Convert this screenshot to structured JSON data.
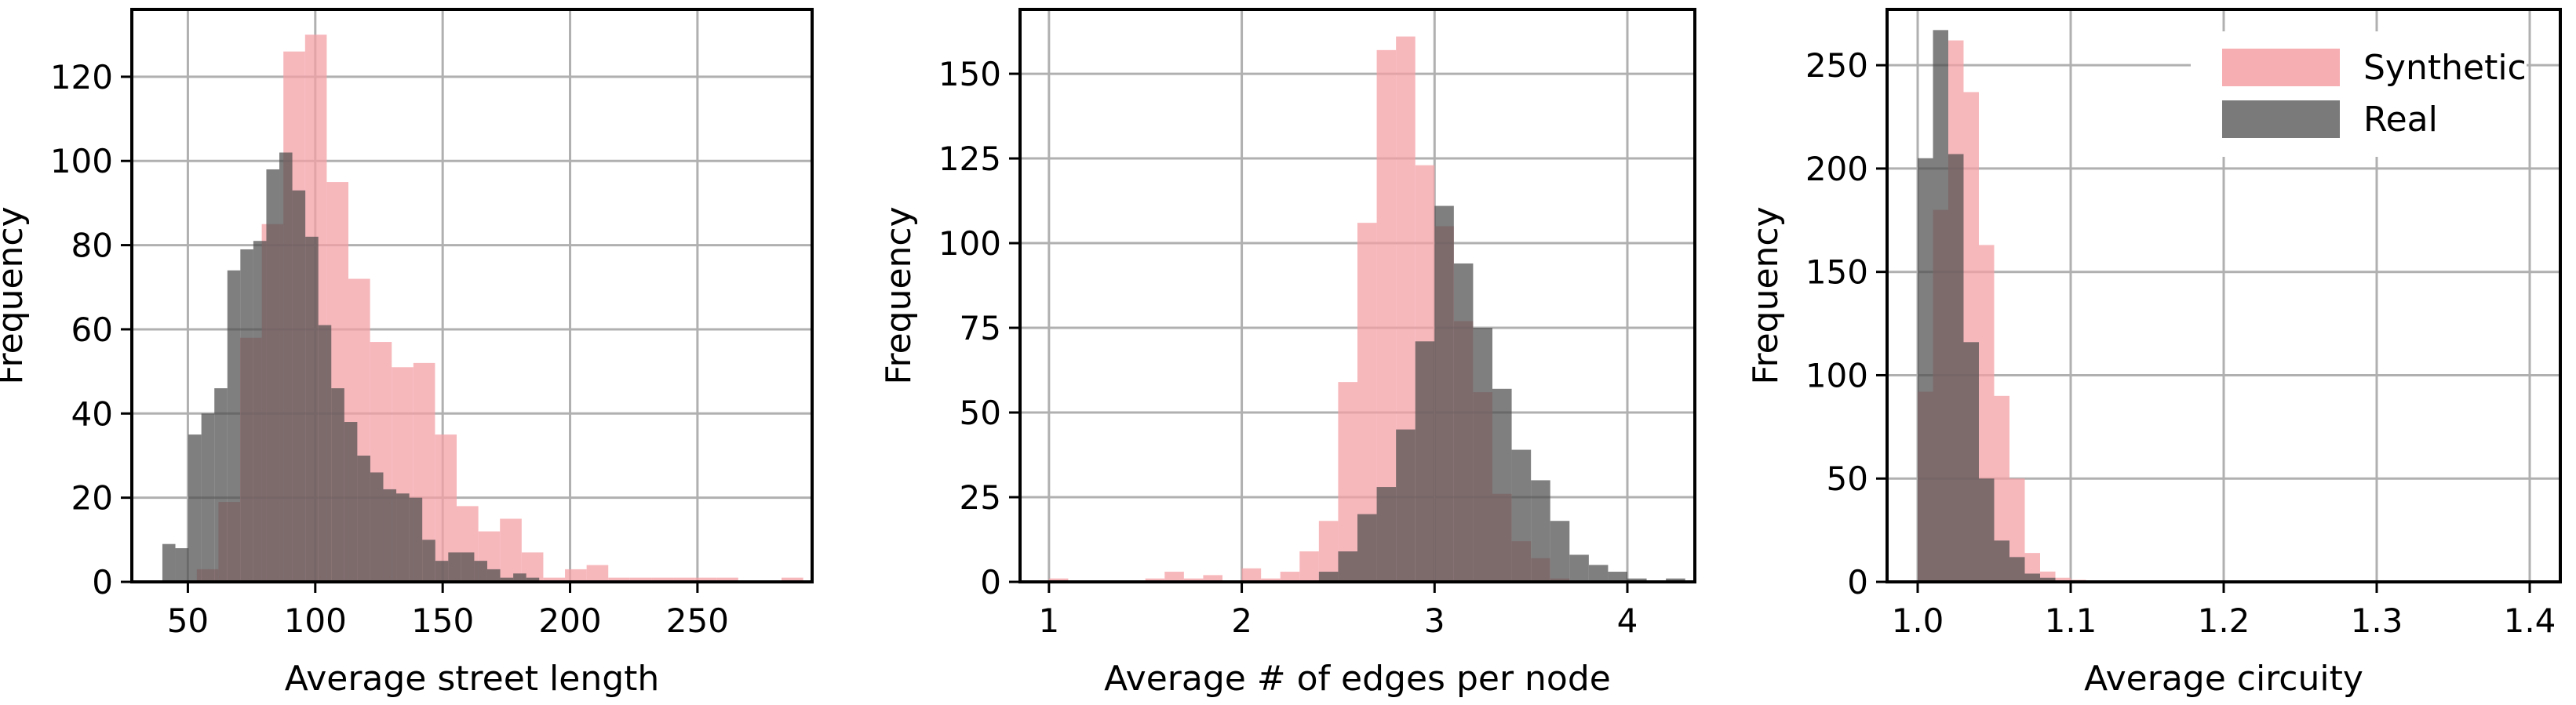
{
  "figure": {
    "colors": {
      "synthetic": "#f4a0a5",
      "real": "#4d4d4d",
      "grid": "#b0b0b0",
      "axis": "#000000"
    },
    "legend": {
      "placement": "top-right",
      "entries": [
        "Synthetic",
        "Real"
      ]
    }
  },
  "chart_data": [
    {
      "type": "bar",
      "histogram": true,
      "ylabel": "Frequency",
      "xlabel": "Average street length",
      "xlim": [
        28,
        295
      ],
      "ylim": [
        0,
        136
      ],
      "xticks": [
        50,
        100,
        150,
        200,
        250
      ],
      "yticks": [
        0,
        20,
        40,
        60,
        80,
        100,
        120
      ],
      "grid": true,
      "series": [
        {
          "name": "Synthetic",
          "bin_start": 45,
          "bin_width": 8.5,
          "values": [
            0,
            3,
            19,
            58,
            85,
            126,
            130,
            95,
            72,
            57,
            51,
            52,
            35,
            18,
            12,
            15,
            7,
            1,
            3,
            4,
            1,
            1,
            1,
            1,
            1,
            1,
            0,
            0,
            1
          ]
        },
        {
          "name": "Real",
          "bin_start": 40,
          "bin_width": 5.1,
          "values": [
            9,
            8,
            35,
            40,
            46,
            74,
            79,
            81,
            98,
            102,
            93,
            82,
            61,
            46,
            38,
            30,
            26,
            22,
            21,
            20,
            10,
            5,
            7,
            7,
            5,
            3,
            1,
            2,
            1
          ]
        }
      ]
    },
    {
      "type": "bar",
      "histogram": true,
      "ylabel": "Frequency",
      "xlabel": "Average # of edges per node",
      "xlim": [
        0.85,
        4.35
      ],
      "ylim": [
        0,
        169
      ],
      "xticks": [
        1,
        2,
        3,
        4
      ],
      "yticks": [
        0,
        25,
        50,
        75,
        100,
        125,
        150
      ],
      "grid": true,
      "series": [
        {
          "name": "Synthetic",
          "bin_start": 1.0,
          "bin_width": 0.1,
          "values": [
            1,
            0,
            0,
            0,
            0,
            1,
            3,
            1,
            2,
            0,
            4,
            1,
            3,
            9,
            18,
            59,
            106,
            157,
            161,
            123,
            105,
            77,
            56,
            26,
            12,
            7,
            1,
            0,
            0,
            0,
            0,
            0,
            0
          ]
        },
        {
          "name": "Real",
          "bin_start": 1.0,
          "bin_width": 0.1,
          "values": [
            0,
            0,
            0,
            0,
            0,
            0,
            0,
            0,
            0,
            0,
            0,
            0,
            0,
            0,
            3,
            9,
            20,
            28,
            45,
            71,
            111,
            94,
            75,
            57,
            39,
            30,
            18,
            8,
            5,
            3,
            1,
            0,
            1
          ]
        }
      ]
    },
    {
      "type": "bar",
      "histogram": true,
      "ylabel": "Frequency",
      "xlabel": "Average circuity",
      "xlim": [
        0.98,
        1.42
      ],
      "ylim": [
        0,
        277
      ],
      "xticks": [
        "1.0",
        "1.1",
        "1.2",
        "1.3",
        "1.4"
      ],
      "yticks": [
        0,
        50,
        100,
        150,
        200,
        250
      ],
      "grid": true,
      "series": [
        {
          "name": "Synthetic",
          "bin_start": 1.0,
          "bin_width": 0.01,
          "values": [
            92,
            180,
            262,
            237,
            163,
            90,
            50,
            14,
            5,
            2,
            1,
            0,
            0,
            0,
            0,
            0,
            0,
            0,
            0,
            0,
            0,
            0,
            0,
            0,
            0,
            0,
            0,
            0,
            0,
            0,
            0,
            0,
            0,
            0,
            0,
            0,
            0,
            0,
            0,
            0
          ]
        },
        {
          "name": "Real",
          "bin_start": 1.0,
          "bin_width": 0.01,
          "values": [
            205,
            267,
            207,
            116,
            50,
            20,
            12,
            4,
            2,
            0,
            0,
            0,
            0,
            0,
            0,
            0,
            0,
            0,
            0,
            0,
            0,
            0,
            0,
            0,
            0,
            0,
            0,
            0,
            0,
            0,
            0,
            0,
            0,
            0,
            0,
            0,
            0,
            0,
            0,
            0
          ]
        }
      ]
    }
  ]
}
